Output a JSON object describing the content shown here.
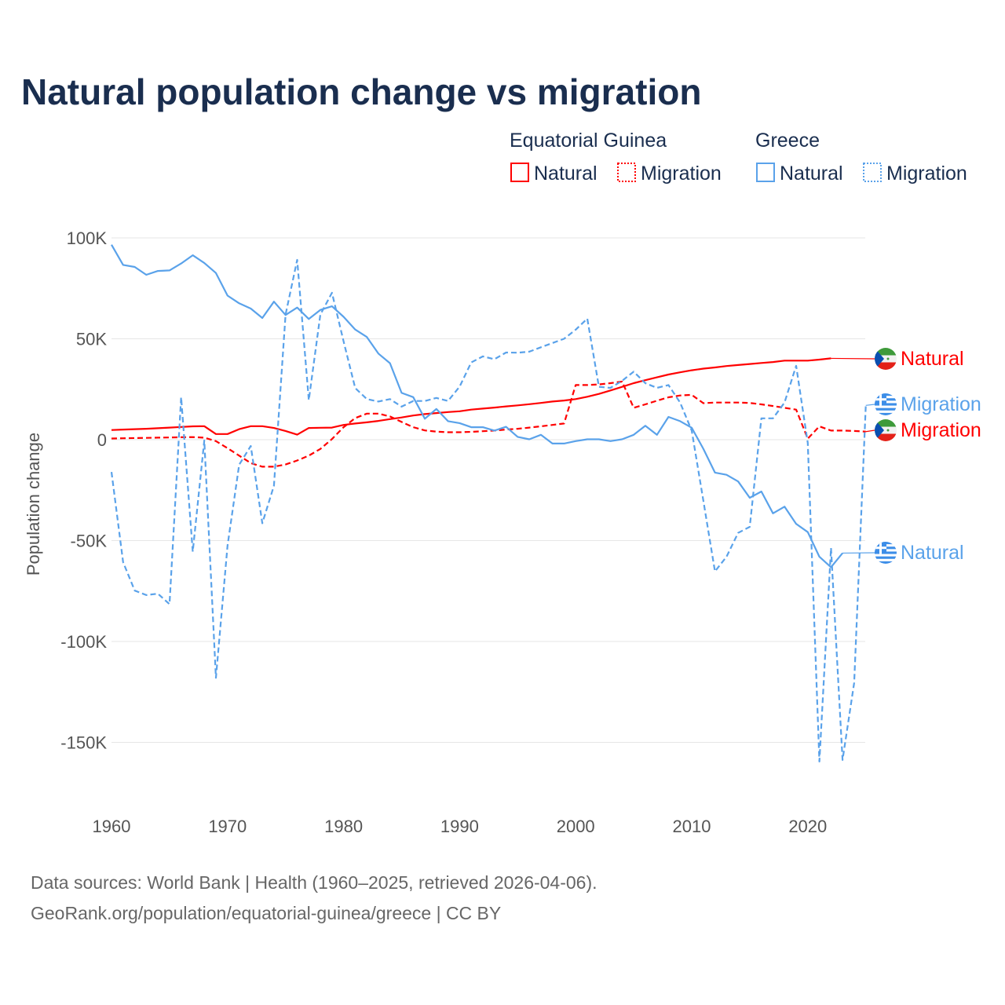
{
  "colors": {
    "eg": "#ff0000",
    "gr": "#5aa2ea",
    "title": "#1a2e4f",
    "grid": "#e6e6e6"
  },
  "chart_data": {
    "type": "line",
    "title": "Natural population change vs migration",
    "xlabel": "",
    "ylabel": "Population change",
    "xlim": [
      1960,
      2025
    ],
    "ylim": [
      -160000,
      100000
    ],
    "x_ticks": [
      "1960",
      "1970",
      "1980",
      "1990",
      "2000",
      "2010",
      "2020"
    ],
    "y_ticks": [
      {
        "value": 100000,
        "label": "100K"
      },
      {
        "value": 50000,
        "label": "50K"
      },
      {
        "value": 0,
        "label": "0"
      },
      {
        "value": -50000,
        "label": "-50K"
      },
      {
        "value": -100000,
        "label": "-100K"
      },
      {
        "value": -150000,
        "label": "-150K"
      }
    ],
    "grid": true,
    "legend": {
      "placement": "top-right",
      "groups": [
        {
          "name": "Equatorial Guinea",
          "items": [
            "Natural",
            "Migration"
          ]
        },
        {
          "name": "Greece",
          "items": [
            "Natural",
            "Migration"
          ]
        }
      ]
    },
    "series": [
      {
        "name": "Equatorial Guinea Natural",
        "country": "Equatorial Guinea",
        "label": "Natural",
        "color": "#ff0000",
        "dash": false,
        "start_year": 1960,
        "values": [
          4800,
          5000,
          5200,
          5400,
          5700,
          6000,
          6300,
          6600,
          6700,
          2800,
          2800,
          5200,
          6700,
          6700,
          5800,
          4300,
          2500,
          5800,
          5900,
          6000,
          7300,
          8000,
          8600,
          9300,
          10200,
          11000,
          12000,
          12700,
          13200,
          13700,
          14100,
          14900,
          15400,
          15900,
          16500,
          17000,
          17600,
          18200,
          18900,
          19400,
          20100,
          21300,
          22700,
          24400,
          26200,
          28000,
          29500,
          30900,
          32300,
          33400,
          34400,
          35200,
          35800,
          36500,
          37000,
          37500,
          38000,
          38500,
          39200,
          39200,
          39200,
          39700,
          40300
        ],
        "end_label": "Natural"
      },
      {
        "name": "Equatorial Guinea Migration",
        "country": "Equatorial Guinea",
        "label": "Migration",
        "color": "#ff0000",
        "dash": true,
        "start_year": 1960,
        "values": [
          600,
          700,
          800,
          900,
          1000,
          1100,
          1200,
          1300,
          1000,
          -700,
          -4200,
          -7900,
          -11600,
          -13400,
          -13400,
          -12300,
          -10300,
          -7900,
          -4600,
          300,
          6200,
          10700,
          12900,
          12900,
          11500,
          8800,
          6200,
          4600,
          4000,
          3700,
          3700,
          3900,
          4200,
          4500,
          5000,
          5400,
          6000,
          6600,
          7300,
          8000,
          27100,
          27100,
          27400,
          28000,
          28800,
          15800,
          17500,
          19300,
          21000,
          21900,
          22200,
          18100,
          18400,
          18400,
          18400,
          18200,
          17500,
          16700,
          15800,
          14900,
          500,
          6600,
          4500,
          4500,
          4300,
          4000
        ],
        "end_label": "Migration"
      },
      {
        "name": "Greece Natural",
        "country": "Greece",
        "label": "Natural",
        "color": "#5aa2ea",
        "dash": false,
        "start_year": 1960,
        "values": [
          96600,
          86600,
          85600,
          81700,
          83600,
          83900,
          87300,
          91400,
          87600,
          82600,
          71400,
          67600,
          65000,
          60300,
          68400,
          61800,
          65500,
          59800,
          64300,
          66100,
          60900,
          54600,
          50900,
          42700,
          37900,
          23200,
          21100,
          10400,
          15200,
          9200,
          8200,
          6200,
          6200,
          4500,
          6400,
          1400,
          200,
          2400,
          -1900,
          -1900,
          -700,
          200,
          200,
          -700,
          200,
          2400,
          6900,
          2400,
          11300,
          9200,
          5900,
          -4500,
          -16300,
          -17400,
          -20700,
          -28800,
          -25700,
          -36500,
          -33200,
          -41700,
          -45800,
          -58000,
          -63200,
          -56200
        ],
        "end_label": "Natural"
      },
      {
        "name": "Greece Migration",
        "country": "Greece",
        "label": "Migration",
        "color": "#5aa2ea",
        "dash": true,
        "start_year": 1960,
        "values": [
          -16000,
          -60700,
          -74800,
          -77000,
          -76300,
          -81500,
          21100,
          -55500,
          -400,
          -118000,
          -52500,
          -12400,
          -3100,
          -41400,
          -22800,
          62000,
          89100,
          19600,
          62000,
          72800,
          48700,
          25600,
          20100,
          18900,
          20100,
          16400,
          19200,
          19200,
          20700,
          19200,
          26300,
          38300,
          41300,
          39900,
          43200,
          43100,
          43600,
          45800,
          47900,
          50000,
          54500,
          60000,
          26200,
          25700,
          29200,
          33700,
          28000,
          25700,
          27100,
          18400,
          4500,
          -30200,
          -65300,
          -58000,
          -46200,
          -43200,
          10600,
          10600,
          18400,
          36600,
          -1600,
          -159500,
          -53600,
          -158700,
          -120500,
          17000
        ],
        "end_label": "Migration"
      }
    ]
  },
  "source": {
    "line1": "Data sources: World Bank | Health (1960–2025, retrieved 2026-04-06).",
    "line2": "GeoRank.org/population/equatorial-guinea/greece | CC BY"
  }
}
